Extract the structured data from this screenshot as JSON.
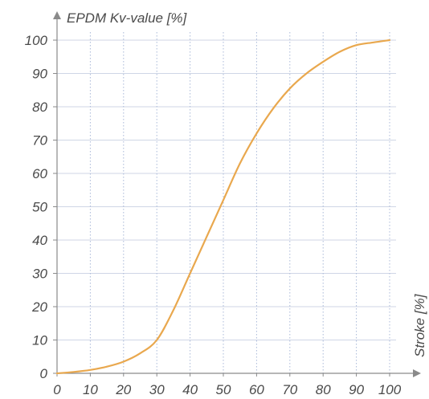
{
  "colors": {
    "series": "#e9a84e",
    "axis": "#8a8a8a",
    "text": "#4a4a4a"
  },
  "chart_data": {
    "type": "line",
    "title": "",
    "ylabel": "EPDM Kv-value [%]",
    "xlabel": "Stroke [%]",
    "xlim": [
      0,
      100
    ],
    "ylim": [
      0,
      100
    ],
    "grid": true,
    "x_ticks": [
      "0",
      "10",
      "20",
      "30",
      "40",
      "50",
      "60",
      "70",
      "80",
      "90",
      "100"
    ],
    "y_ticks": [
      "0",
      "10",
      "20",
      "30",
      "40",
      "50",
      "60",
      "70",
      "80",
      "90",
      "100"
    ],
    "series": [
      {
        "x": [
          0,
          5,
          10,
          15,
          20,
          25,
          30,
          35,
          40,
          45,
          50,
          55,
          60,
          65,
          70,
          75,
          80,
          85,
          90,
          95,
          100
        ],
        "y": [
          0,
          0.4,
          1,
          2,
          3.5,
          6,
          10,
          19,
          30,
          41,
          52,
          63,
          72,
          79.5,
          85.5,
          90,
          93.5,
          96.5,
          98.5,
          99.3,
          100
        ]
      }
    ]
  }
}
